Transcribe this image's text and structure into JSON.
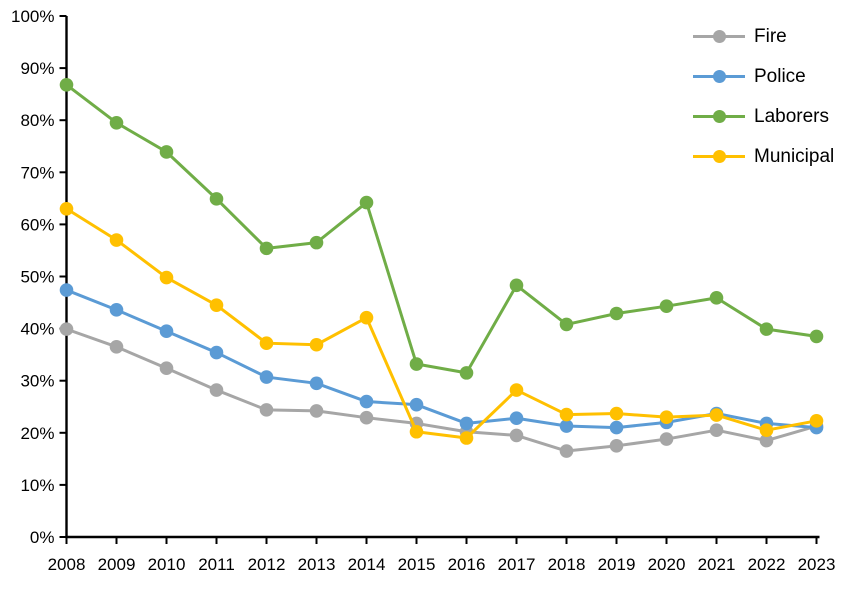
{
  "chart_data": {
    "type": "line",
    "title": "",
    "xlabel": "",
    "ylabel": "",
    "categories": [
      "2008",
      "2009",
      "2010",
      "2011",
      "2012",
      "2013",
      "2014",
      "2015",
      "2016",
      "2017",
      "2018",
      "2019",
      "2020",
      "2021",
      "2022",
      "2023"
    ],
    "series": [
      {
        "name": "Fire",
        "color": "#a6a6a6",
        "values": [
          39.9,
          36.5,
          32.4,
          28.2,
          24.4,
          24.2,
          22.9,
          21.8,
          20.2,
          19.5,
          16.5,
          17.5,
          18.8,
          20.5,
          18.5,
          21.3
        ]
      },
      {
        "name": "Police",
        "color": "#5b9bd5",
        "values": [
          47.4,
          43.6,
          39.5,
          35.4,
          30.7,
          29.5,
          26.0,
          25.4,
          21.8,
          22.8,
          21.3,
          21.0,
          22.0,
          23.7,
          21.8,
          21.0
        ]
      },
      {
        "name": "Laborers",
        "color": "#70ad47",
        "values": [
          86.8,
          79.5,
          73.9,
          64.9,
          55.4,
          56.5,
          64.2,
          33.2,
          31.5,
          48.3,
          40.8,
          42.9,
          44.3,
          45.9,
          39.9,
          38.5
        ]
      },
      {
        "name": "Municipal",
        "color": "#ffc000",
        "values": [
          63.0,
          57.0,
          49.8,
          44.5,
          37.2,
          36.9,
          42.1,
          20.2,
          19.0,
          28.2,
          23.5,
          23.7,
          23.0,
          23.4,
          20.5,
          22.3
        ]
      }
    ],
    "ylim": [
      0,
      100
    ],
    "y_tick_labels": [
      "0%",
      "10%",
      "20%",
      "30%",
      "40%",
      "50%",
      "60%",
      "70%",
      "80%",
      "90%",
      "100%"
    ],
    "grid": false,
    "legend_position": "top-right-inside",
    "axis_color": "#000000",
    "background_color": "#ffffff"
  }
}
